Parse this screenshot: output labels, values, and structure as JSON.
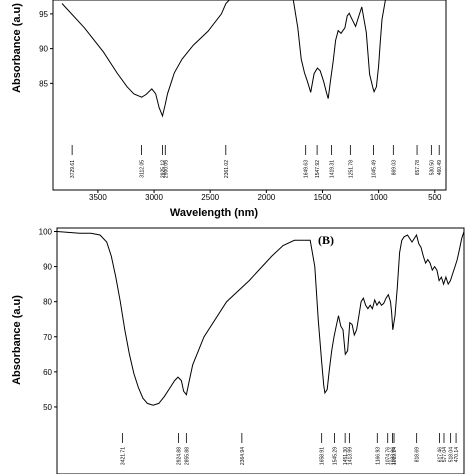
{
  "chart_data": [
    {
      "panel": "A",
      "type": "line",
      "title": "",
      "ylabel": "Absorbance (a.u)",
      "xlabel": "Wavelength (nm)",
      "y_ticks": [
        95,
        90,
        85
      ],
      "x_ticks": [
        3500,
        3000,
        2500,
        2000,
        1500,
        1000,
        500
      ],
      "xlim": [
        3900,
        400
      ],
      "ylim": [
        79,
        97
      ],
      "series": [
        {
          "x": [
            3820,
            3620,
            3450,
            3330,
            3240,
            3180,
            3110,
            3070,
            3020,
            2985,
            2955,
            2925,
            2900,
            2880,
            2860,
            2820,
            2750,
            2650,
            2520,
            2400,
            2360,
            2330,
            1760,
            1720,
            1690,
            1660,
            1634,
            1605,
            1575,
            1545,
            1520,
            1490,
            1465,
            1449,
            1428,
            1405,
            1383,
            1360,
            1335,
            1300,
            1280,
            1262,
            1245,
            1230,
            1205,
            1180,
            1150,
            1110,
            1080,
            1050,
            1040,
            1020,
            1000,
            985,
            970,
            940
          ],
          "y": [
            96.5,
            93,
            89.5,
            86.5,
            84.5,
            83.5,
            83,
            83.4,
            84.2,
            83.5,
            81.5,
            80.3,
            82,
            83.5,
            84.5,
            86.5,
            88.5,
            90.5,
            92.5,
            95,
            96.5,
            97.5,
            97.5,
            93,
            88.5,
            86.5,
            85.3,
            83.7,
            86.4,
            87.2,
            86.8,
            85.3,
            83.7,
            82.8,
            85.5,
            88.2,
            91.2,
            92.6,
            92.2,
            93,
            94.7,
            95.1,
            94.5,
            94,
            93.2,
            94.5,
            96,
            92.3,
            86.3,
            84.3,
            83.8,
            84.5,
            87.5,
            91,
            94.2,
            97.5
          ],
          "peaks": [
            "3729.61",
            "3112.05",
            "2925.12",
            "2900.05",
            "2361.02",
            "1649.63",
            "1547.92",
            "1419.31",
            "1251.78",
            "1045.49",
            "869.03",
            "657.78",
            "530.50",
            "460.49"
          ]
        }
      ]
    },
    {
      "panel": "B",
      "type": "line",
      "title": "(B)",
      "ylabel": "Absorbance (a.u)",
      "xlabel": "",
      "y_ticks": [
        100,
        90,
        80,
        70,
        60,
        50
      ],
      "xlim": [
        4000,
        400
      ],
      "ylim": [
        44,
        101
      ],
      "series": [
        {
          "x": [
            4000,
            3800,
            3700,
            3620,
            3560,
            3520,
            3480,
            3440,
            3400,
            3360,
            3320,
            3280,
            3240,
            3200,
            3150,
            3100,
            3050,
            3000,
            2960,
            2930,
            2900,
            2880,
            2855,
            2830,
            2800,
            2700,
            2500,
            2300,
            2100,
            2000,
            1900,
            1800,
            1760,
            1720,
            1690,
            1660,
            1640,
            1630,
            1610,
            1590,
            1570,
            1550,
            1530,
            1510,
            1490,
            1470,
            1450,
            1430,
            1410,
            1390,
            1370,
            1350,
            1330,
            1310,
            1290,
            1270,
            1250,
            1230,
            1210,
            1190,
            1170,
            1150,
            1130,
            1110,
            1090,
            1070,
            1050,
            1040,
            1030,
            1010,
            990,
            970,
            950,
            930,
            900,
            880,
            860,
            840,
            820,
            800,
            780,
            760,
            740,
            720,
            700,
            680,
            660,
            640,
            620,
            600,
            580,
            560,
            540,
            520,
            500,
            480,
            460,
            440,
            420,
            400
          ],
          "y": [
            100,
            99.5,
            99.5,
            99,
            97,
            93,
            87,
            80,
            72,
            65,
            59.5,
            55.5,
            52.5,
            51,
            50.5,
            51,
            53,
            55.5,
            57.5,
            58.5,
            57.5,
            54.5,
            53.5,
            57.5,
            62,
            70,
            80,
            86,
            93,
            96,
            97.5,
            97.5,
            97.5,
            90,
            75,
            63,
            56,
            54,
            55,
            61,
            66,
            70,
            73,
            76,
            73,
            72,
            65,
            66,
            74,
            73.5,
            70.5,
            72,
            76,
            80,
            81,
            79,
            78,
            79,
            78,
            80.5,
            79,
            80,
            79,
            79.5,
            81,
            82,
            80,
            77,
            72,
            76,
            84,
            94,
            97.5,
            98.5,
            99,
            98,
            97,
            98,
            99,
            96.5,
            95.5,
            93,
            91,
            92,
            91,
            89,
            90,
            89,
            86,
            87,
            85,
            87,
            85,
            86,
            88,
            90,
            92,
            95,
            98,
            100
          ],
          "peaks": [
            "3421.71",
            "2924.88",
            "2855.88",
            "2364.94",
            "1658.91",
            "1545.29",
            "1451.30",
            "1413.99",
            "1166.93",
            "1074.76",
            "1019.14",
            "1033.06",
            "818.69",
            "617.46",
            "577.04",
            "518.04",
            "470.14"
          ]
        }
      ]
    }
  ]
}
